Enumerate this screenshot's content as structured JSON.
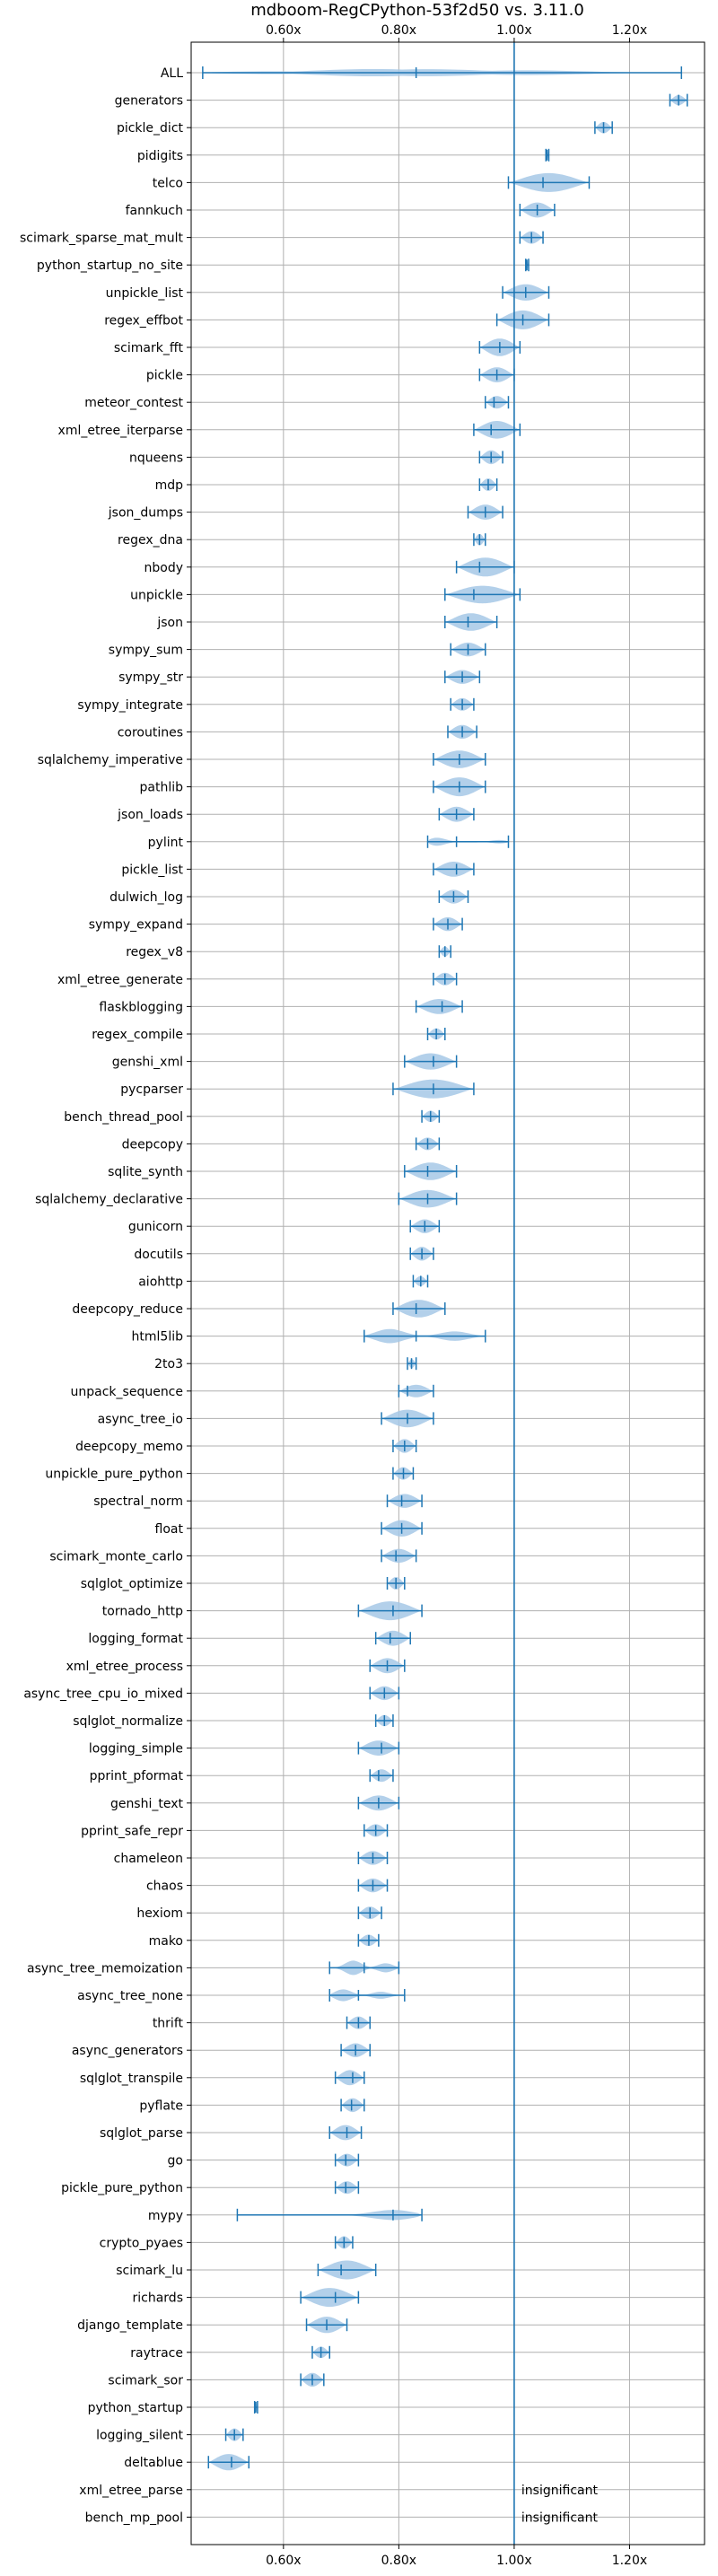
{
  "chart_data": {
    "type": "violin",
    "title": "mdboom-RegCPython-53f2d50 vs. 3.11.0",
    "xlabel": "",
    "ylabel": "",
    "xlim": [
      0.44,
      1.33
    ],
    "xticks": [
      0.6,
      0.8,
      1.0,
      1.2
    ],
    "xtick_labels": [
      "0.60x",
      "0.80x",
      "1.00x",
      "1.20x"
    ],
    "reference_line": 1.0,
    "grid": true,
    "color": "#1f77b4",
    "fill_color": "#a6c8e6",
    "note_text": "insignificant",
    "series": [
      {
        "name": "ALL",
        "min": 0.46,
        "max": 1.29,
        "median": 0.83,
        "width": 0.5,
        "lobes": [
          [
            0.55,
            0.3
          ],
          [
            0.75,
            0.6
          ],
          [
            0.85,
            0.55
          ],
          [
            1.03,
            0.4
          ]
        ]
      },
      {
        "name": "generators",
        "min": 1.27,
        "max": 1.3,
        "median": 1.285,
        "width": 0.4,
        "lobes": []
      },
      {
        "name": "pickle_dict",
        "min": 1.14,
        "max": 1.17,
        "median": 1.155,
        "width": 0.45,
        "lobes": []
      },
      {
        "name": "pidigits",
        "min": 1.055,
        "max": 1.06,
        "median": 1.057,
        "width": 0.3,
        "lobes": []
      },
      {
        "name": "telco",
        "min": 0.99,
        "max": 1.13,
        "median": 1.05,
        "width": 0.75,
        "lobes": []
      },
      {
        "name": "fannkuch",
        "min": 1.01,
        "max": 1.07,
        "median": 1.04,
        "width": 0.6,
        "lobes": []
      },
      {
        "name": "scimark_sparse_mat_mult",
        "min": 1.01,
        "max": 1.05,
        "median": 1.03,
        "width": 0.5,
        "lobes": []
      },
      {
        "name": "python_startup_no_site",
        "min": 1.02,
        "max": 1.025,
        "median": 1.022,
        "width": 0.3,
        "lobes": []
      },
      {
        "name": "unpickle_list",
        "min": 0.98,
        "max": 1.06,
        "median": 1.02,
        "width": 0.65,
        "lobes": []
      },
      {
        "name": "regex_effbot",
        "min": 0.97,
        "max": 1.06,
        "median": 1.015,
        "width": 0.75,
        "lobes": []
      },
      {
        "name": "scimark_fft",
        "min": 0.94,
        "max": 1.01,
        "median": 0.975,
        "width": 0.7,
        "lobes": []
      },
      {
        "name": "pickle",
        "min": 0.94,
        "max": 1.0,
        "median": 0.97,
        "width": 0.6,
        "lobes": []
      },
      {
        "name": "meteor_contest",
        "min": 0.95,
        "max": 0.99,
        "median": 0.965,
        "width": 0.5,
        "lobes": []
      },
      {
        "name": "xml_etree_iterparse",
        "min": 0.93,
        "max": 1.01,
        "median": 0.96,
        "width": 0.7,
        "lobes": []
      },
      {
        "name": "nqueens",
        "min": 0.94,
        "max": 0.98,
        "median": 0.96,
        "width": 0.55,
        "lobes": []
      },
      {
        "name": "mdp",
        "min": 0.94,
        "max": 0.97,
        "median": 0.955,
        "width": 0.5,
        "lobes": []
      },
      {
        "name": "json_dumps",
        "min": 0.92,
        "max": 0.98,
        "median": 0.95,
        "width": 0.6,
        "lobes": []
      },
      {
        "name": "regex_dna",
        "min": 0.93,
        "max": 0.95,
        "median": 0.94,
        "width": 0.45,
        "lobes": []
      },
      {
        "name": "nbody",
        "min": 0.9,
        "max": 1.0,
        "median": 0.94,
        "width": 0.75,
        "lobes": []
      },
      {
        "name": "unpickle",
        "min": 0.88,
        "max": 1.01,
        "median": 0.93,
        "width": 0.7,
        "lobes": []
      },
      {
        "name": "json",
        "min": 0.88,
        "max": 0.97,
        "median": 0.92,
        "width": 0.7,
        "lobes": []
      },
      {
        "name": "sympy_sum",
        "min": 0.89,
        "max": 0.95,
        "median": 0.92,
        "width": 0.55,
        "lobes": []
      },
      {
        "name": "sympy_str",
        "min": 0.88,
        "max": 0.94,
        "median": 0.91,
        "width": 0.55,
        "lobes": []
      },
      {
        "name": "sympy_integrate",
        "min": 0.89,
        "max": 0.93,
        "median": 0.91,
        "width": 0.5,
        "lobes": []
      },
      {
        "name": "coroutines",
        "min": 0.885,
        "max": 0.935,
        "median": 0.91,
        "width": 0.55,
        "lobes": []
      },
      {
        "name": "sqlalchemy_imperative",
        "min": 0.86,
        "max": 0.95,
        "median": 0.905,
        "width": 0.7,
        "lobes": []
      },
      {
        "name": "pathlib",
        "min": 0.86,
        "max": 0.95,
        "median": 0.905,
        "width": 0.75,
        "lobes": []
      },
      {
        "name": "json_loads",
        "min": 0.87,
        "max": 0.93,
        "median": 0.9,
        "width": 0.6,
        "lobes": []
      },
      {
        "name": "pylint",
        "min": 0.85,
        "max": 0.99,
        "median": 0.9,
        "width": 0.7,
        "lobes": [
          [
            0.86,
            0.7
          ],
          [
            0.98,
            0.3
          ]
        ]
      },
      {
        "name": "pickle_list",
        "min": 0.86,
        "max": 0.93,
        "median": 0.9,
        "width": 0.6,
        "lobes": []
      },
      {
        "name": "dulwich_log",
        "min": 0.87,
        "max": 0.92,
        "median": 0.895,
        "width": 0.55,
        "lobes": []
      },
      {
        "name": "sympy_expand",
        "min": 0.86,
        "max": 0.91,
        "median": 0.885,
        "width": 0.55,
        "lobes": []
      },
      {
        "name": "regex_v8",
        "min": 0.87,
        "max": 0.89,
        "median": 0.88,
        "width": 0.4,
        "lobes": []
      },
      {
        "name": "xml_etree_generate",
        "min": 0.86,
        "max": 0.9,
        "median": 0.88,
        "width": 0.5,
        "lobes": []
      },
      {
        "name": "flaskblogging",
        "min": 0.83,
        "max": 0.91,
        "median": 0.875,
        "width": 0.6,
        "lobes": []
      },
      {
        "name": "regex_compile",
        "min": 0.85,
        "max": 0.88,
        "median": 0.865,
        "width": 0.45,
        "lobes": []
      },
      {
        "name": "genshi_xml",
        "min": 0.81,
        "max": 0.9,
        "median": 0.86,
        "width": 0.65,
        "lobes": []
      },
      {
        "name": "pycparser",
        "min": 0.79,
        "max": 0.93,
        "median": 0.86,
        "width": 0.75,
        "lobes": []
      },
      {
        "name": "bench_thread_pool",
        "min": 0.84,
        "max": 0.87,
        "median": 0.855,
        "width": 0.45,
        "lobes": []
      },
      {
        "name": "deepcopy",
        "min": 0.83,
        "max": 0.87,
        "median": 0.85,
        "width": 0.5,
        "lobes": []
      },
      {
        "name": "sqlite_synth",
        "min": 0.81,
        "max": 0.9,
        "median": 0.85,
        "width": 0.7,
        "lobes": []
      },
      {
        "name": "sqlalchemy_declarative",
        "min": 0.8,
        "max": 0.9,
        "median": 0.85,
        "width": 0.7,
        "lobes": []
      },
      {
        "name": "gunicorn",
        "min": 0.82,
        "max": 0.87,
        "median": 0.845,
        "width": 0.55,
        "lobes": []
      },
      {
        "name": "docutils",
        "min": 0.82,
        "max": 0.86,
        "median": 0.84,
        "width": 0.55,
        "lobes": []
      },
      {
        "name": "aiohttp",
        "min": 0.825,
        "max": 0.85,
        "median": 0.838,
        "width": 0.4,
        "lobes": []
      },
      {
        "name": "deepcopy_reduce",
        "min": 0.79,
        "max": 0.88,
        "median": 0.83,
        "width": 0.7,
        "lobes": []
      },
      {
        "name": "html5lib",
        "min": 0.74,
        "max": 0.95,
        "median": 0.83,
        "width": 0.85,
        "lobes": [
          [
            0.78,
            0.8
          ],
          [
            0.9,
            0.5
          ]
        ]
      },
      {
        "name": "2to3",
        "min": 0.815,
        "max": 0.83,
        "median": 0.822,
        "width": 0.35,
        "lobes": []
      },
      {
        "name": "unpack_sequence",
        "min": 0.8,
        "max": 0.86,
        "median": 0.815,
        "width": 0.5,
        "lobes": []
      },
      {
        "name": "async_tree_io",
        "min": 0.77,
        "max": 0.86,
        "median": 0.815,
        "width": 0.7,
        "lobes": []
      },
      {
        "name": "deepcopy_memo",
        "min": 0.79,
        "max": 0.83,
        "median": 0.81,
        "width": 0.55,
        "lobes": []
      },
      {
        "name": "unpickle_pure_python",
        "min": 0.79,
        "max": 0.825,
        "median": 0.808,
        "width": 0.5,
        "lobes": []
      },
      {
        "name": "spectral_norm",
        "min": 0.78,
        "max": 0.84,
        "median": 0.805,
        "width": 0.55,
        "lobes": []
      },
      {
        "name": "float",
        "min": 0.77,
        "max": 0.84,
        "median": 0.805,
        "width": 0.65,
        "lobes": []
      },
      {
        "name": "scimark_monte_carlo",
        "min": 0.77,
        "max": 0.83,
        "median": 0.795,
        "width": 0.55,
        "lobes": []
      },
      {
        "name": "sqlglot_optimize",
        "min": 0.78,
        "max": 0.81,
        "median": 0.795,
        "width": 0.5,
        "lobes": []
      },
      {
        "name": "tornado_http",
        "min": 0.73,
        "max": 0.84,
        "median": 0.79,
        "width": 0.75,
        "lobes": []
      },
      {
        "name": "logging_format",
        "min": 0.76,
        "max": 0.82,
        "median": 0.785,
        "width": 0.6,
        "lobes": []
      },
      {
        "name": "xml_etree_process",
        "min": 0.75,
        "max": 0.81,
        "median": 0.78,
        "width": 0.6,
        "lobes": []
      },
      {
        "name": "async_tree_cpu_io_mixed",
        "min": 0.75,
        "max": 0.8,
        "median": 0.775,
        "width": 0.55,
        "lobes": []
      },
      {
        "name": "sqlglot_normalize",
        "min": 0.76,
        "max": 0.79,
        "median": 0.775,
        "width": 0.45,
        "lobes": []
      },
      {
        "name": "logging_simple",
        "min": 0.73,
        "max": 0.8,
        "median": 0.77,
        "width": 0.6,
        "lobes": []
      },
      {
        "name": "pprint_pformat",
        "min": 0.75,
        "max": 0.79,
        "median": 0.765,
        "width": 0.5,
        "lobes": []
      },
      {
        "name": "genshi_text",
        "min": 0.73,
        "max": 0.8,
        "median": 0.765,
        "width": 0.6,
        "lobes": []
      },
      {
        "name": "pprint_safe_repr",
        "min": 0.74,
        "max": 0.78,
        "median": 0.76,
        "width": 0.5,
        "lobes": []
      },
      {
        "name": "chameleon",
        "min": 0.73,
        "max": 0.78,
        "median": 0.755,
        "width": 0.55,
        "lobes": []
      },
      {
        "name": "chaos",
        "min": 0.73,
        "max": 0.78,
        "median": 0.755,
        "width": 0.55,
        "lobes": []
      },
      {
        "name": "hexiom",
        "min": 0.73,
        "max": 0.77,
        "median": 0.75,
        "width": 0.5,
        "lobes": []
      },
      {
        "name": "mako",
        "min": 0.73,
        "max": 0.765,
        "median": 0.748,
        "width": 0.45,
        "lobes": []
      },
      {
        "name": "async_tree_memoization",
        "min": 0.68,
        "max": 0.8,
        "median": 0.74,
        "width": 0.75,
        "lobes": [
          [
            0.72,
            0.8
          ],
          [
            0.78,
            0.6
          ]
        ]
      },
      {
        "name": "async_tree_none",
        "min": 0.68,
        "max": 0.81,
        "median": 0.73,
        "width": 0.75,
        "lobes": [
          [
            0.7,
            0.8
          ],
          [
            0.77,
            0.4
          ]
        ]
      },
      {
        "name": "thrift",
        "min": 0.71,
        "max": 0.75,
        "median": 0.73,
        "width": 0.5,
        "lobes": []
      },
      {
        "name": "async_generators",
        "min": 0.7,
        "max": 0.75,
        "median": 0.725,
        "width": 0.55,
        "lobes": []
      },
      {
        "name": "sqlglot_transpile",
        "min": 0.69,
        "max": 0.74,
        "median": 0.72,
        "width": 0.6,
        "lobes": []
      },
      {
        "name": "pyflate",
        "min": 0.7,
        "max": 0.74,
        "median": 0.718,
        "width": 0.55,
        "lobes": []
      },
      {
        "name": "sqlglot_parse",
        "min": 0.68,
        "max": 0.735,
        "median": 0.71,
        "width": 0.6,
        "lobes": []
      },
      {
        "name": "go",
        "min": 0.69,
        "max": 0.73,
        "median": 0.708,
        "width": 0.5,
        "lobes": []
      },
      {
        "name": "pickle_pure_python",
        "min": 0.69,
        "max": 0.73,
        "median": 0.708,
        "width": 0.5,
        "lobes": []
      },
      {
        "name": "mypy",
        "min": 0.52,
        "max": 0.84,
        "median": 0.79,
        "width": 0.6,
        "lobes": [
          [
            0.55,
            0.1
          ],
          [
            0.8,
            0.9
          ]
        ]
      },
      {
        "name": "crypto_pyaes",
        "min": 0.69,
        "max": 0.72,
        "median": 0.705,
        "width": 0.5,
        "lobes": []
      },
      {
        "name": "scimark_lu",
        "min": 0.66,
        "max": 0.76,
        "median": 0.7,
        "width": 0.75,
        "lobes": []
      },
      {
        "name": "richards",
        "min": 0.63,
        "max": 0.73,
        "median": 0.69,
        "width": 0.75,
        "lobes": []
      },
      {
        "name": "django_template",
        "min": 0.64,
        "max": 0.71,
        "median": 0.675,
        "width": 0.65,
        "lobes": []
      },
      {
        "name": "raytrace",
        "min": 0.65,
        "max": 0.68,
        "median": 0.665,
        "width": 0.45,
        "lobes": []
      },
      {
        "name": "scimark_sor",
        "min": 0.63,
        "max": 0.67,
        "median": 0.65,
        "width": 0.55,
        "lobes": []
      },
      {
        "name": "python_startup",
        "min": 0.55,
        "max": 0.555,
        "median": 0.552,
        "width": 0.3,
        "lobes": []
      },
      {
        "name": "logging_silent",
        "min": 0.5,
        "max": 0.53,
        "median": 0.515,
        "width": 0.5,
        "lobes": []
      },
      {
        "name": "deltablue",
        "min": 0.47,
        "max": 0.54,
        "median": 0.51,
        "width": 0.65,
        "lobes": []
      },
      {
        "name": "xml_etree_parse",
        "insignificant": true
      },
      {
        "name": "bench_mp_pool",
        "insignificant": true
      }
    ]
  }
}
